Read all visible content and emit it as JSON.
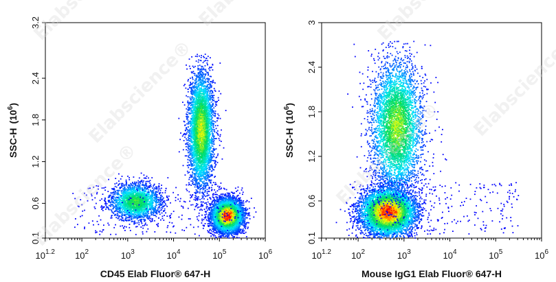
{
  "chart_data": [
    {
      "type": "scatter",
      "xlabel": "CD45 Elab Fluor® 647-H",
      "ylabel": "SSC-H",
      "ylabel_unit_base": "10",
      "ylabel_unit_exp": "6",
      "xscale": "log",
      "xlim": [
        16,
        1000000
      ],
      "ylim": [
        0.1,
        3.2
      ],
      "xticks": [
        {
          "base": "10",
          "exp": "1.2"
        },
        {
          "base": "10",
          "exp": "2"
        },
        {
          "base": "10",
          "exp": "3"
        },
        {
          "base": "10",
          "exp": "4"
        },
        {
          "base": "10",
          "exp": "5"
        },
        {
          "base": "10",
          "exp": "6"
        }
      ],
      "yticks": [
        "0.1",
        "0.6",
        "1.2",
        "1.8",
        "2.4",
        "3.2"
      ],
      "ytick_values": [
        0.1,
        0.6,
        1.2,
        1.8,
        2.4,
        3.2
      ],
      "clusters": [
        {
          "x_center": 1500,
          "y_center": 0.62,
          "x_spread_decades": 0.28,
          "y_spread": 0.13,
          "density": 0.55,
          "points": 2200
        },
        {
          "x_center": 40000,
          "y_center": 1.65,
          "x_spread_decades": 0.14,
          "y_spread": 0.42,
          "density": 0.7,
          "points": 4200
        },
        {
          "x_center": 150000,
          "y_center": 0.42,
          "x_spread_decades": 0.17,
          "y_spread": 0.12,
          "density": 1.0,
          "points": 5200
        }
      ],
      "y_cap": 2.75
    },
    {
      "type": "scatter",
      "xlabel": "Mouse IgG1 Elab Fluor® 647-H",
      "ylabel": "SSC-H",
      "ylabel_unit_base": "10",
      "ylabel_unit_exp": "6",
      "xscale": "log",
      "xlim": [
        16,
        1000000
      ],
      "ylim": [
        0.1,
        3.0
      ],
      "xticks": [
        {
          "base": "10",
          "exp": "1.2"
        },
        {
          "base": "10",
          "exp": "2"
        },
        {
          "base": "10",
          "exp": "3"
        },
        {
          "base": "10",
          "exp": "4"
        },
        {
          "base": "10",
          "exp": "5"
        },
        {
          "base": "10",
          "exp": "6"
        }
      ],
      "yticks": [
        "0.1",
        "0.6",
        "1.2",
        "1.8",
        "2.4",
        "3"
      ],
      "ytick_values": [
        0.1,
        0.6,
        1.2,
        1.8,
        2.4,
        3.0
      ],
      "clusters": [
        {
          "x_center": 450,
          "y_center": 0.45,
          "x_spread_decades": 0.3,
          "y_spread": 0.16,
          "density": 1.0,
          "points": 6200
        },
        {
          "x_center": 700,
          "y_center": 1.6,
          "x_spread_decades": 0.28,
          "y_spread": 0.45,
          "density": 0.65,
          "points": 4200
        }
      ],
      "y_cap": 2.75
    }
  ],
  "colors": {
    "density_low": "#0000ff",
    "density_mid": "#00e5ff",
    "density_high": "#ffff00",
    "density_peak": "#ff0000",
    "watermark": "#d8d8d8"
  },
  "watermark": "Elabscience®"
}
